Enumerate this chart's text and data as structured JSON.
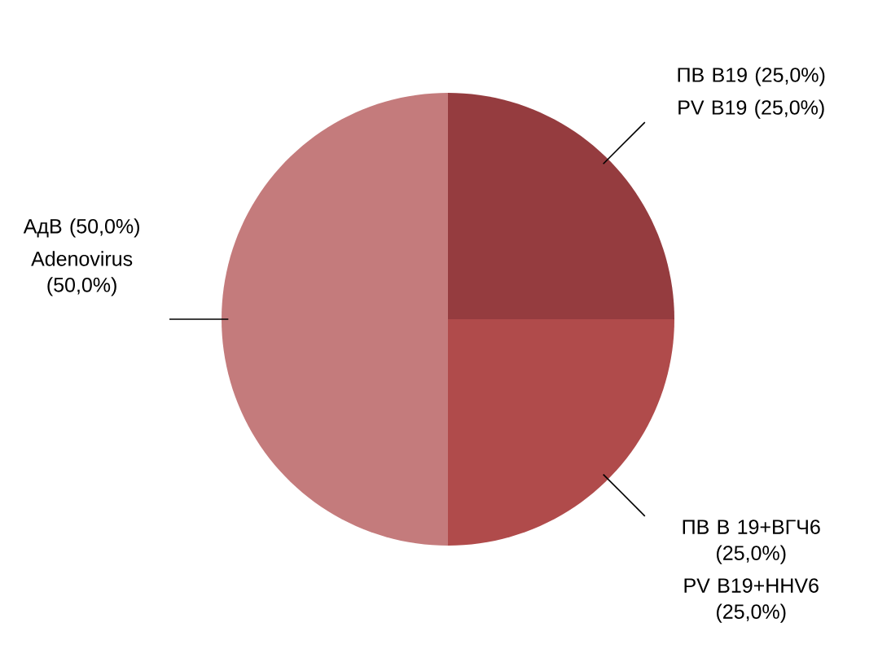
{
  "chart_data": {
    "type": "pie",
    "categories": [
      "ПВ В19 (25,0%)",
      "ПВ В 19+ВГЧ6 (25,0%)",
      "АдВ (50,0%)"
    ],
    "values": [
      25,
      25,
      50
    ],
    "colors": [
      "#953c3f",
      "#b04b4b",
      "#c47b7c"
    ],
    "annotations": [
      "PV B19 (25,0%)",
      "PV B19+HHV6 (25,0%)",
      "Adenovirus (50,0%)"
    ]
  }
}
